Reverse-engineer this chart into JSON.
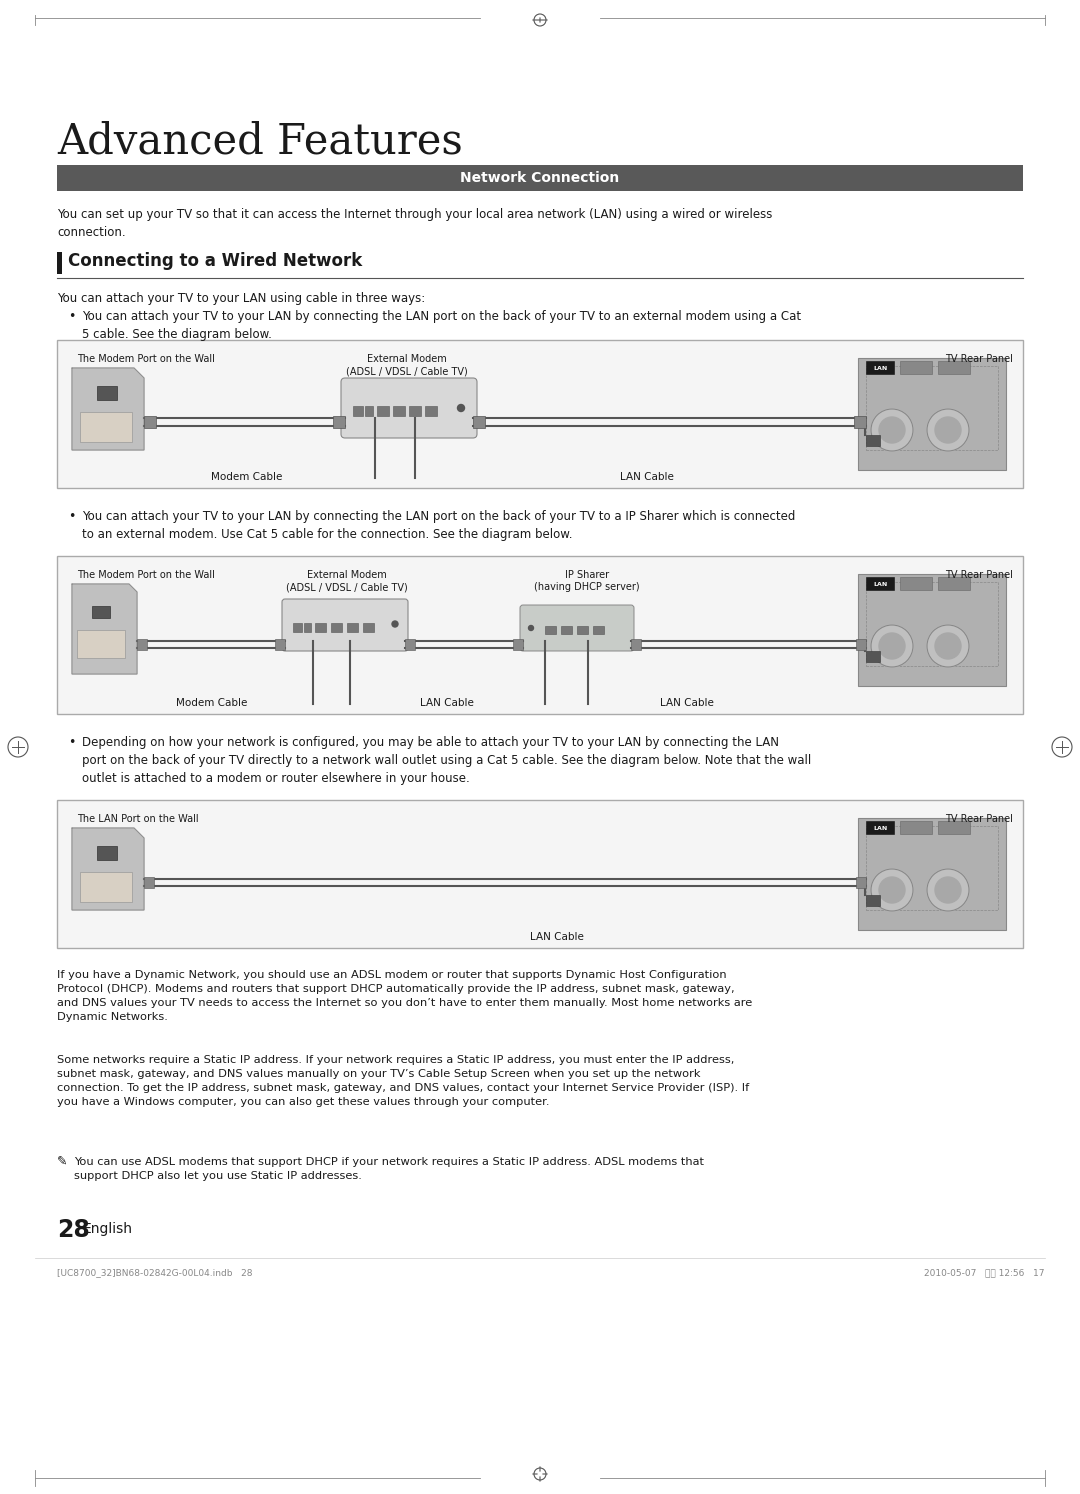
{
  "page_bg": "#ffffff",
  "page_width": 10.8,
  "page_height": 14.94,
  "main_title": "Advanced Features",
  "section_bar_color": "#595959",
  "section_bar_text": "Network Connection",
  "section_bar_text_color": "#ffffff",
  "intro_text": "You can set up your TV so that it can access the Internet through your local area network (LAN) using a wired or wireless\nconnection.",
  "subsection_title": "Connecting to a Wired Network",
  "subsection_bar_color": "#2d2d2d",
  "body_text_color": "#1a1a1a",
  "bullet1_intro": "You can attach your TV to your LAN using cable in three ways:",
  "bullet1_text": "You can attach your TV to your LAN by connecting the LAN port on the back of your TV to an external modem using a Cat\n5 cable. See the diagram below.",
  "bullet2_text": "You can attach your TV to your LAN by connecting the LAN port on the back of your TV to a IP Sharer which is connected\nto an external modem. Use Cat 5 cable for the connection. See the diagram below.",
  "bullet3_text": "Depending on how your network is configured, you may be able to attach your TV to your LAN by connecting the LAN\nport on the back of your TV directly to a network wall outlet using a Cat 5 cable. See the diagram below. Note that the wall\noutlet is attached to a modem or router elsewhere in your house.",
  "footer_text1": "If you have a Dynamic Network, you should use an ADSL modem or router that supports Dynamic Host Configuration\nProtocol (DHCP). Modems and routers that support DHCP automatically provide the IP address, subnet mask, gateway,\nand DNS values your TV needs to access the Internet so you don’t have to enter them manually. Most home networks are\nDynamic Networks.",
  "footer_text2": "Some networks require a Static IP address. If your network requires a Static IP address, you must enter the IP address,\nsubnet mask, gateway, and DNS values manually on your TV’s Cable Setup Screen when you set up the network\nconnection. To get the IP address, subnet mask, gateway, and DNS values, contact your Internet Service Provider (ISP). If\nyou have a Windows computer, you can also get these values through your computer.",
  "footer_note": "You can use ADSL modems that support DHCP if your network requires a Static IP address. ADSL modems that\nsupport DHCP also let you use Static IP addresses.",
  "page_number": "28",
  "page_number_label": "English",
  "bottom_file_text": "[UC8700_32]BN68-02842G-00L04.indb   28",
  "bottom_date_text": "2010-05-07   오후 12:56   17",
  "diagram1_label_wall": "The Modem Port on the Wall",
  "diagram1_label_modem": "External Modem\n(ADSL / VDSL / Cable TV)",
  "diagram1_label_tv": "TV Rear Panel",
  "diagram1_label_modem_cable": "Modem Cable",
  "diagram1_label_lan_cable": "LAN Cable",
  "diagram2_label_wall": "The Modem Port on the Wall",
  "diagram2_label_modem": "External Modem\n(ADSL / VDSL / Cable TV)",
  "diagram2_label_sharer": "IP Sharer\n(having DHCP server)",
  "diagram2_label_tv": "TV Rear Panel",
  "diagram2_label_modem_cable": "Modem Cable",
  "diagram2_label_lan_cable1": "LAN Cable",
  "diagram2_label_lan_cable2": "LAN Cable",
  "diagram3_label_wall": "The LAN Port on the Wall",
  "diagram3_label_tv": "TV Rear Panel",
  "diagram3_label_lan_cable": "LAN Cable"
}
